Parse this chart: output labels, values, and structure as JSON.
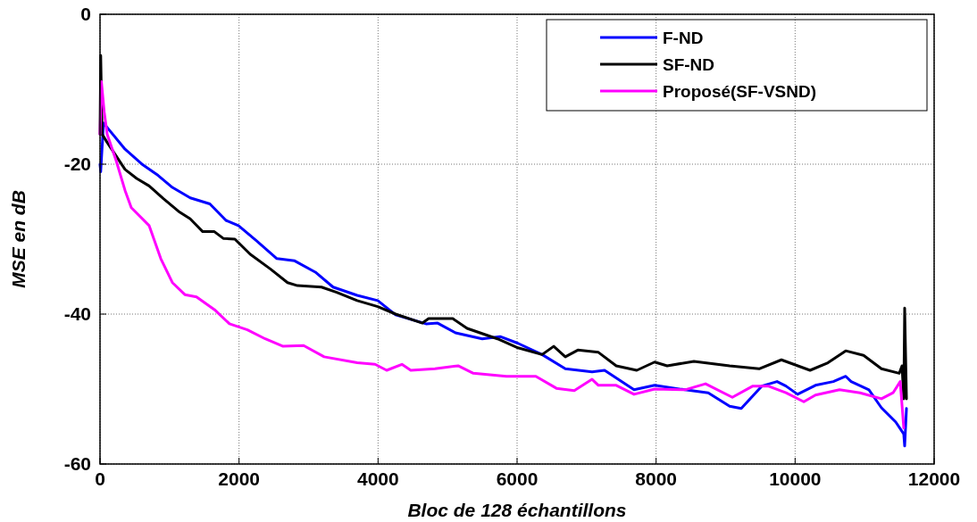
{
  "chart_data": {
    "type": "line",
    "xlabel": "Bloc de 128 échantillons",
    "ylabel": "MSE en dB",
    "xlim": [
      0,
      12000
    ],
    "ylim": [
      -60,
      0
    ],
    "xticks": [
      0,
      2000,
      4000,
      6000,
      8000,
      10000,
      12000
    ],
    "yticks": [
      -60,
      -40,
      -20,
      0
    ],
    "grid": true,
    "legend": "top right",
    "line_style": "solid",
    "series": [
      {
        "name": "F-ND",
        "color": "#0000ff",
        "x": [
          0,
          10,
          50,
          103,
          360,
          617,
          835,
          1041,
          1298,
          1580,
          1812,
          1992,
          2248,
          2544,
          2801,
          3097,
          3353,
          3700,
          3996,
          4253,
          4690,
          4857,
          5114,
          5499,
          5756,
          6013,
          6360,
          6694,
          7079,
          7259,
          7683,
          7979,
          8415,
          8750,
          9058,
          9225,
          9521,
          9740,
          9868,
          10035,
          10292,
          10549,
          10728,
          10806,
          11062,
          11242,
          11448,
          11563,
          11576,
          11602
        ],
        "values": [
          -20,
          -21,
          -14.5,
          -15.1,
          -18,
          -20.1,
          -21.5,
          -23.1,
          -24.5,
          -25.3,
          -27.5,
          -28.2,
          -30.2,
          -32.6,
          -32.9,
          -34.4,
          -36.4,
          -37.5,
          -38.2,
          -40.1,
          -41.3,
          -41.2,
          -42.5,
          -43.3,
          -43,
          -43.9,
          -45.4,
          -47.3,
          -47.7,
          -47.5,
          -50.1,
          -49.5,
          -50.1,
          -50.5,
          -52.3,
          -52.6,
          -49.6,
          -49,
          -49.6,
          -50.7,
          -49.5,
          -49,
          -48.3,
          -49,
          -50.1,
          -52.5,
          -54.4,
          -56,
          -57.6,
          -52.6
        ]
      },
      {
        "name": "SF-ND",
        "color": "#000000",
        "x": [
          0,
          10,
          30,
          103,
          360,
          527,
          707,
          912,
          1131,
          1298,
          1478,
          1645,
          1773,
          1940,
          2158,
          2454,
          2698,
          2840,
          3186,
          3405,
          3700,
          3996,
          4253,
          4638,
          4728,
          5075,
          5281,
          5718,
          6013,
          6360,
          6527,
          6694,
          6874,
          7170,
          7427,
          7722,
          7979,
          8159,
          8544,
          9058,
          9482,
          9803,
          10215,
          10472,
          10728,
          10985,
          11242,
          11499,
          11538,
          11563,
          11576,
          11602
        ],
        "values": [
          -16,
          -5.5,
          -16,
          -17.1,
          -20.7,
          -21.9,
          -22.9,
          -24.6,
          -26.3,
          -27.3,
          -29,
          -29,
          -29.9,
          -30,
          -32,
          -34,
          -35.8,
          -36.2,
          -36.4,
          -37.1,
          -38.2,
          -39,
          -40,
          -41.2,
          -40.6,
          -40.6,
          -41.9,
          -43.3,
          -44.5,
          -45.4,
          -44.3,
          -45.7,
          -44.8,
          -45.1,
          -46.9,
          -47.5,
          -46.4,
          -46.9,
          -46.3,
          -46.9,
          -47.3,
          -46.1,
          -47.5,
          -46.5,
          -44.9,
          -45.5,
          -47.3,
          -47.9,
          -46.9,
          -51.3,
          -39.2,
          -51.3
        ]
      },
      {
        "name": "Proposé(SF-VSND)",
        "color": "#ff00ff",
        "x": [
          0,
          20,
          60,
          103,
          231,
          360,
          450,
          707,
          874,
          1041,
          1221,
          1388,
          1645,
          1863,
          2120,
          2377,
          2634,
          2929,
          3225,
          3700,
          3957,
          4124,
          4343,
          4471,
          4818,
          5152,
          5371,
          5846,
          6270,
          6566,
          6823,
          7079,
          7170,
          7427,
          7683,
          7979,
          8415,
          8711,
          9097,
          9392,
          9611,
          9868,
          10125,
          10292,
          10639,
          10934,
          11242,
          11409,
          11512,
          11563
        ],
        "values": [
          -16,
          -9,
          -13,
          -16,
          -19.5,
          -23.5,
          -25.8,
          -28.2,
          -32.6,
          -35.8,
          -37.4,
          -37.7,
          -39.4,
          -41.3,
          -42.1,
          -43.3,
          -44.3,
          -44.2,
          -45.7,
          -46.5,
          -46.7,
          -47.5,
          -46.7,
          -47.5,
          -47.3,
          -46.9,
          -47.9,
          -48.3,
          -48.3,
          -49.9,
          -50.2,
          -48.7,
          -49.5,
          -49.5,
          -50.7,
          -50,
          -50.1,
          -49.3,
          -51.1,
          -49.6,
          -49.6,
          -50.5,
          -51.7,
          -50.8,
          -50.1,
          -50.5,
          -51.3,
          -50.5,
          -49,
          -55.2
        ]
      }
    ]
  }
}
